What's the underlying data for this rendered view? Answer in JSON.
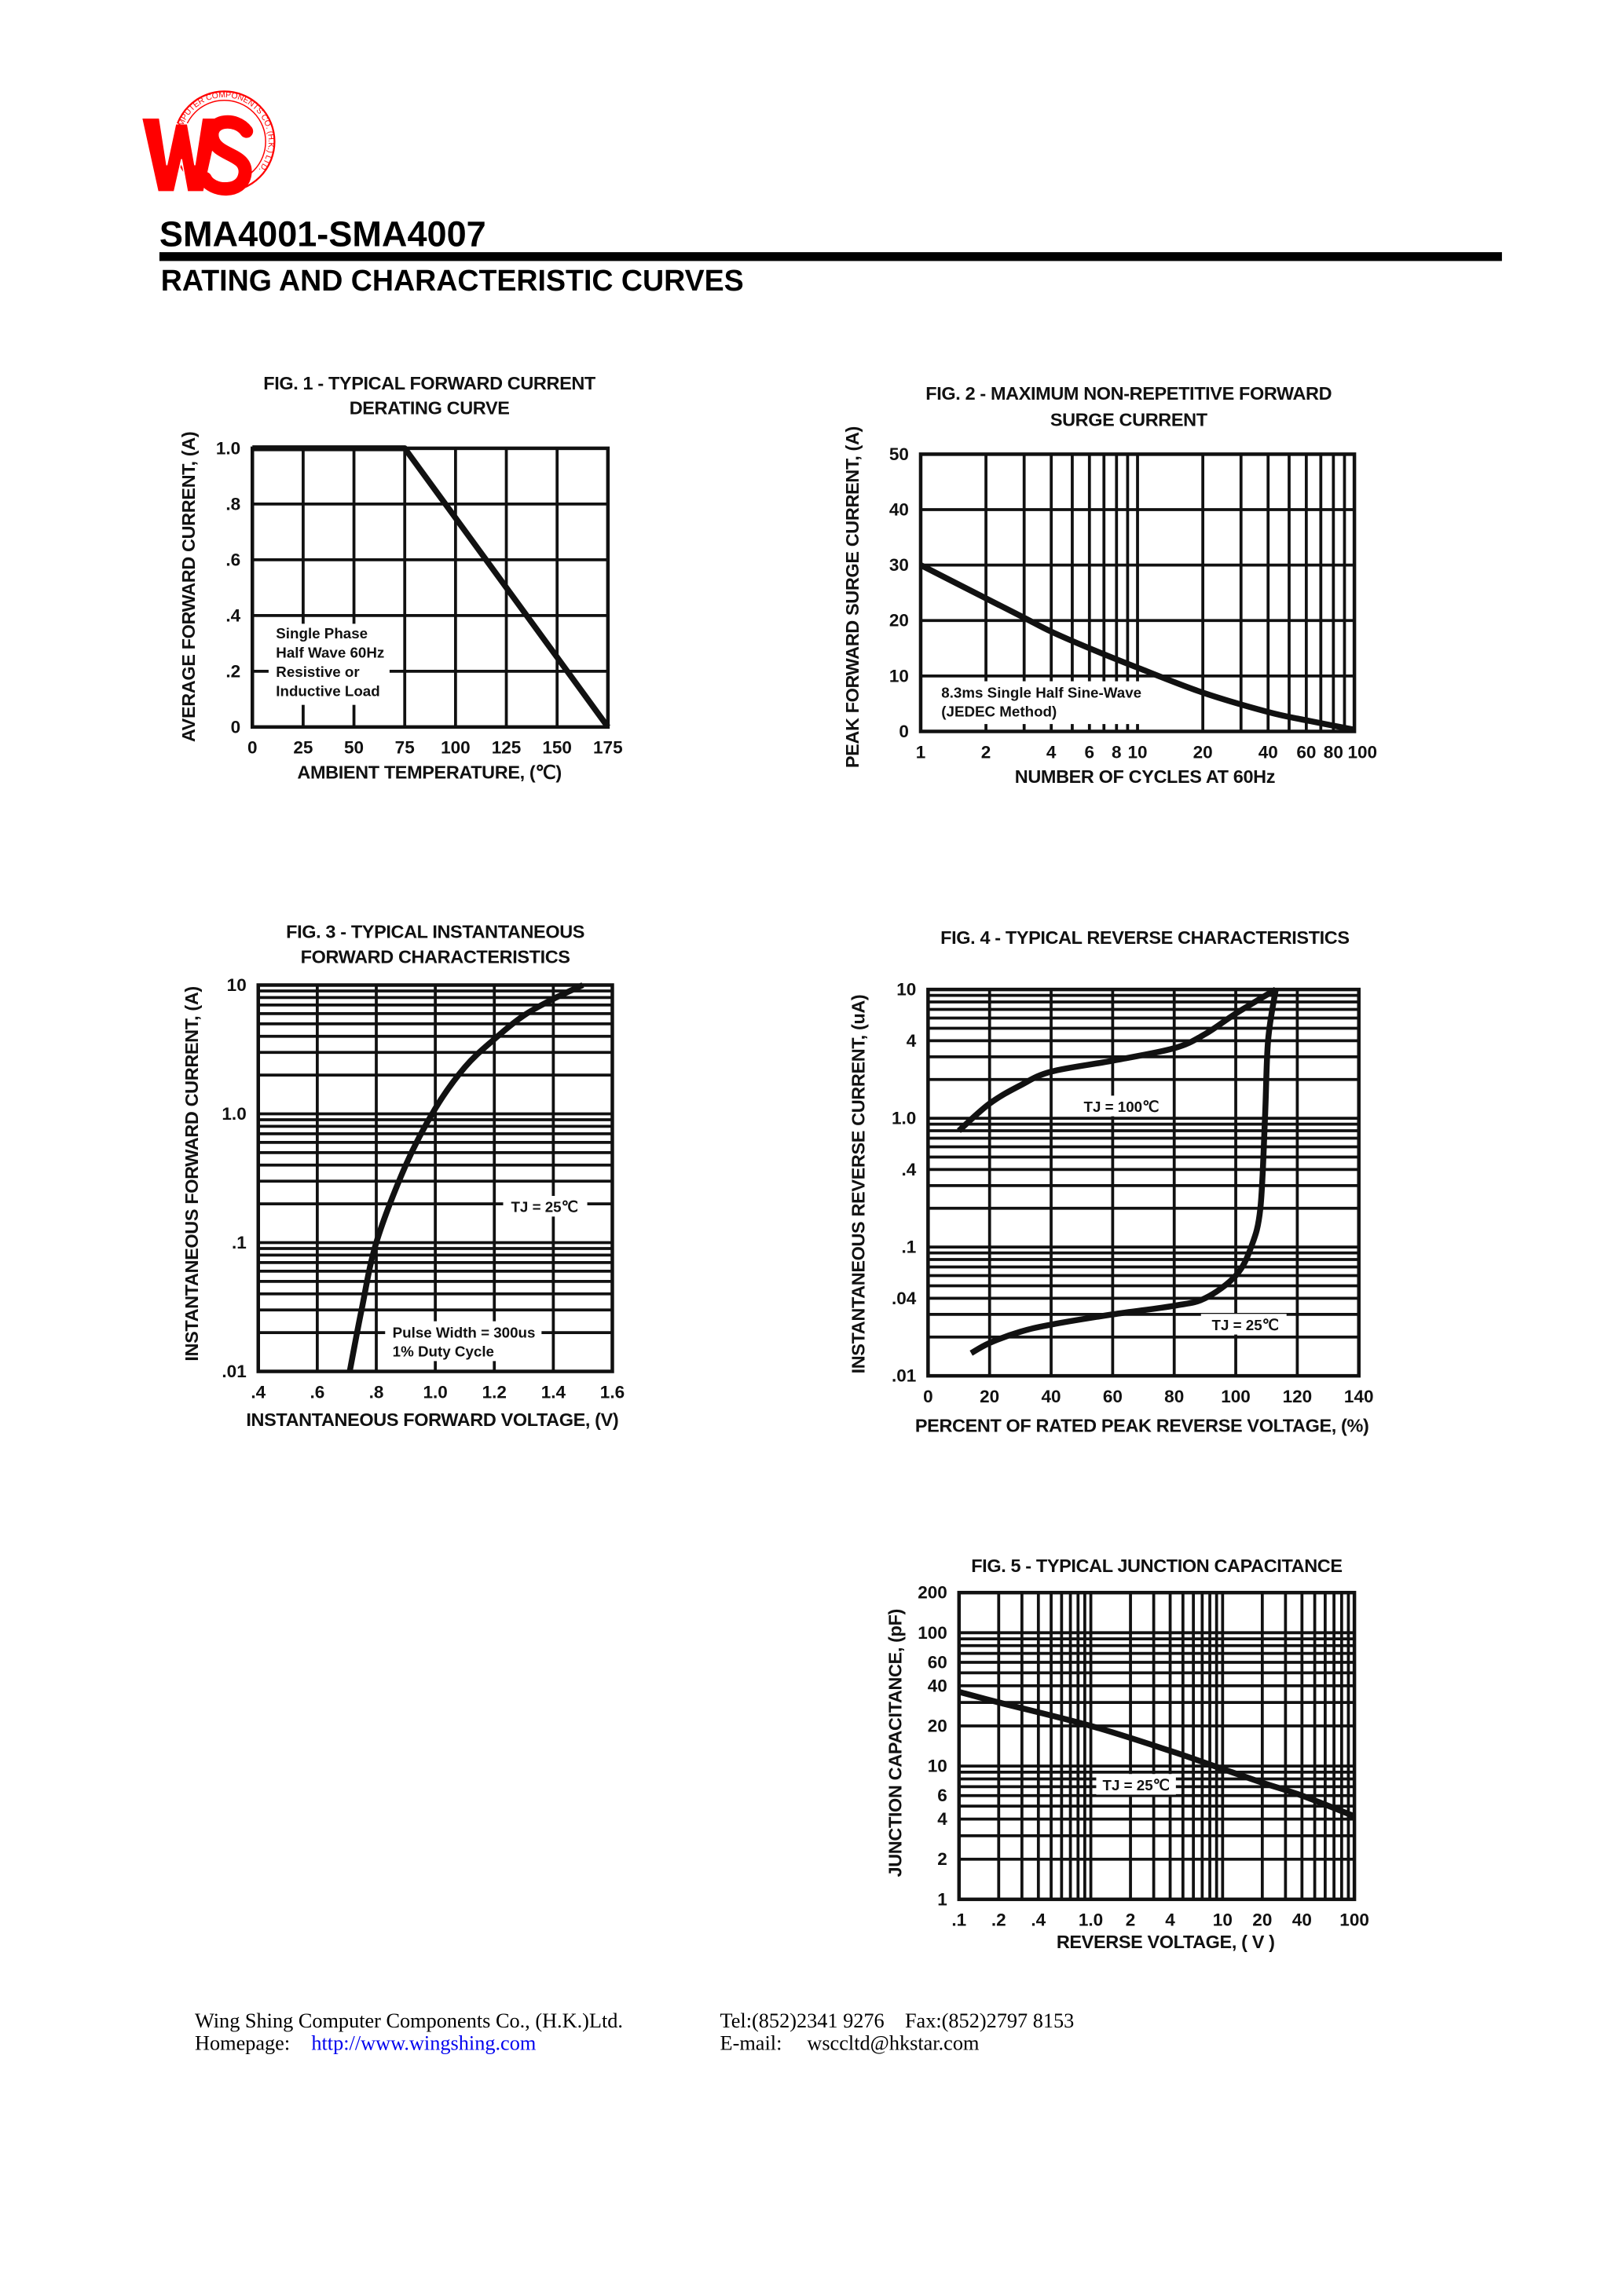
{
  "logo": {
    "letters": "WS",
    "ring_text": "COMPUTER COMPONENTS CO. (H.K.) LTD.",
    "color": "#ff0000"
  },
  "header": {
    "part_range": "SMA4001-SMA4007",
    "subtitle": "RATING AND CHARACTERISTIC CURVES"
  },
  "chart_data": [
    {
      "type": "line",
      "title": [
        "FIG. 1 - TYPICAL FORWARD CURRENT",
        "DERATING CURVE"
      ],
      "xlabel": "AMBIENT TEMPERATURE, (℃)",
      "ylabel": "AVERAGE FORWARD CURRENT, (A)",
      "xscale": "linear",
      "yscale": "linear",
      "xlim": [
        0,
        175
      ],
      "ylim": [
        0,
        1.0
      ],
      "xticks": [
        0,
        25,
        50,
        75,
        100,
        125,
        150,
        175
      ],
      "xtick_labels": [
        "0",
        "25",
        "50",
        "75",
        "100",
        "125",
        "150",
        "175"
      ],
      "yticks": [
        0,
        0.2,
        0.4,
        0.6,
        0.8,
        1.0
      ],
      "ytick_labels": [
        "0",
        ".2",
        ".4",
        ".6",
        ".8",
        "1.0"
      ],
      "grid": true,
      "annotations": [
        [
          "Single Phase",
          "Half Wave 60Hz",
          "Resistive or",
          "Inductive Load"
        ]
      ],
      "series": [
        {
          "x": [
            0,
            75,
            175
          ],
          "y": [
            1.0,
            1.0,
            0
          ]
        }
      ]
    },
    {
      "type": "line",
      "title": [
        "FIG. 2 - MAXIMUM NON-REPETITIVE FORWARD",
        "SURGE CURRENT"
      ],
      "xlabel": "NUMBER OF CYCLES AT 60Hz",
      "ylabel": "PEAK FORWARD SURGE CURRENT, (A)",
      "xscale": "log",
      "yscale": "linear",
      "xlim": [
        1,
        100
      ],
      "ylim": [
        0,
        50
      ],
      "xticks": [
        1,
        2,
        4,
        6,
        8,
        10,
        20,
        40,
        60,
        80,
        100
      ],
      "xtick_labels": [
        "1",
        "2",
        "4",
        "6",
        "8",
        "10",
        "20",
        "40",
        "60",
        "80",
        "100"
      ],
      "yticks": [
        0,
        10,
        20,
        30,
        40,
        50
      ],
      "ytick_labels": [
        "0",
        "10",
        "20",
        "30",
        "40",
        "50"
      ],
      "grid": true,
      "annotations": [
        [
          "8.3ms Single Half Sine-Wave",
          "(JEDEC Method)"
        ]
      ],
      "series": [
        {
          "x": [
            1,
            2,
            3,
            4,
            6,
            10,
            20,
            40,
            60,
            100
          ],
          "y": [
            30,
            24,
            20.5,
            18,
            15,
            11.5,
            7,
            3.5,
            2,
            0.3
          ]
        }
      ]
    },
    {
      "type": "line",
      "title": [
        "FIG. 3 - TYPICAL INSTANTANEOUS",
        "FORWARD CHARACTERISTICS"
      ],
      "xlabel": "INSTANTANEOUS FORWARD VOLTAGE, (V)",
      "ylabel": "INSTANTANEOUS FORWARD CURRENT, (A)",
      "xscale": "linear",
      "yscale": "log",
      "xlim": [
        0.4,
        1.6
      ],
      "ylim": [
        0.01,
        10
      ],
      "xticks": [
        0.4,
        0.6,
        0.8,
        1.0,
        1.2,
        1.4,
        1.6
      ],
      "xtick_labels": [
        ".4",
        ".6",
        ".8",
        "1.0",
        "1.2",
        "1.4",
        "1.6"
      ],
      "yticks": [
        0.01,
        0.1,
        1,
        10
      ],
      "ytick_labels": [
        ".01",
        ".1",
        "1.0",
        "10"
      ],
      "grid": true,
      "annotations": [
        [
          "TJ = 25℃"
        ],
        [
          "Pulse Width = 300us",
          "1% Duty Cycle"
        ]
      ],
      "series": [
        {
          "x": [
            0.71,
            0.75,
            0.8,
            0.9,
            1.0,
            1.1,
            1.2,
            1.3,
            1.4,
            1.5
          ],
          "y": [
            0.01,
            0.03,
            0.1,
            0.4,
            1.1,
            2.3,
            3.8,
            5.8,
            7.8,
            10
          ]
        }
      ]
    },
    {
      "type": "line",
      "title": [
        "FIG. 4 - TYPICAL REVERSE CHARACTERISTICS"
      ],
      "xlabel": "PERCENT OF RATED PEAK REVERSE VOLTAGE, (%)",
      "ylabel": "INSTANTANEOUS REVERSE CURRENT, (uA)",
      "xscale": "linear",
      "yscale": "log",
      "xlim": [
        0,
        140
      ],
      "ylim": [
        0.01,
        10
      ],
      "xticks": [
        0,
        20,
        40,
        60,
        80,
        100,
        120,
        140
      ],
      "xtick_labels": [
        "0",
        "20",
        "40",
        "60",
        "80",
        "100",
        "120",
        "140"
      ],
      "yticks": [
        0.01,
        0.04,
        0.1,
        0.4,
        1,
        4,
        10
      ],
      "ytick_labels": [
        ".01",
        ".04",
        ".1",
        ".4",
        "1.0",
        "4",
        "10"
      ],
      "grid": true,
      "annotations": [
        [
          "TJ = 100℃"
        ],
        [
          "TJ = 25℃"
        ]
      ],
      "series": [
        {
          "x": [
            10,
            20,
            30,
            40,
            60,
            80,
            90,
            100,
            113
          ],
          "y": [
            0.8,
            1.3,
            1.8,
            2.3,
            2.8,
            3.5,
            4.5,
            6.5,
            10
          ]
        },
        {
          "x": [
            14,
            20,
            30,
            40,
            60,
            80,
            90,
            100,
            105,
            108,
            109.5,
            110.5,
            113
          ],
          "y": [
            0.015,
            0.018,
            0.022,
            0.025,
            0.03,
            0.035,
            0.04,
            0.06,
            0.1,
            0.2,
            1,
            4,
            10
          ]
        }
      ]
    },
    {
      "type": "line",
      "title": [
        "FIG. 5 - TYPICAL JUNCTION CAPACITANCE"
      ],
      "xlabel": "REVERSE VOLTAGE, ( V )",
      "ylabel": "JUNCTION CAPACITANCE, (pF)",
      "xscale": "log",
      "yscale": "log",
      "xlim": [
        0.1,
        100
      ],
      "ylim": [
        1,
        200
      ],
      "xticks": [
        0.1,
        0.2,
        0.4,
        1,
        2,
        4,
        10,
        20,
        40,
        100
      ],
      "xtick_labels": [
        ".1",
        ".2",
        ".4",
        "1.0",
        "2",
        "4",
        "10",
        "20",
        "40",
        "100"
      ],
      "yticks": [
        1,
        2,
        4,
        6,
        10,
        20,
        40,
        60,
        100,
        200
      ],
      "ytick_labels": [
        "1",
        "2",
        "4",
        "6",
        "10",
        "20",
        "40",
        "60",
        "100",
        "200"
      ],
      "grid": true,
      "annotations": [
        [
          "TJ = 25℃"
        ]
      ],
      "series": [
        {
          "x": [
            0.1,
            0.2,
            1,
            4,
            10,
            20,
            40,
            100
          ],
          "y": [
            36,
            30,
            20,
            13,
            9.5,
            7.5,
            6,
            4.2
          ]
        }
      ]
    }
  ],
  "footer": {
    "company": "Wing Shing Computer Components Co., (H.K.)Ltd.",
    "homepage_label": "Homepage:",
    "homepage_url": "http://www.wingshing.com",
    "tel_fax": "Tel:(852)2341 9276    Fax:(852)2797 8153",
    "email_label": "E-mail:",
    "email": "wsccltd@hkstar.com"
  }
}
